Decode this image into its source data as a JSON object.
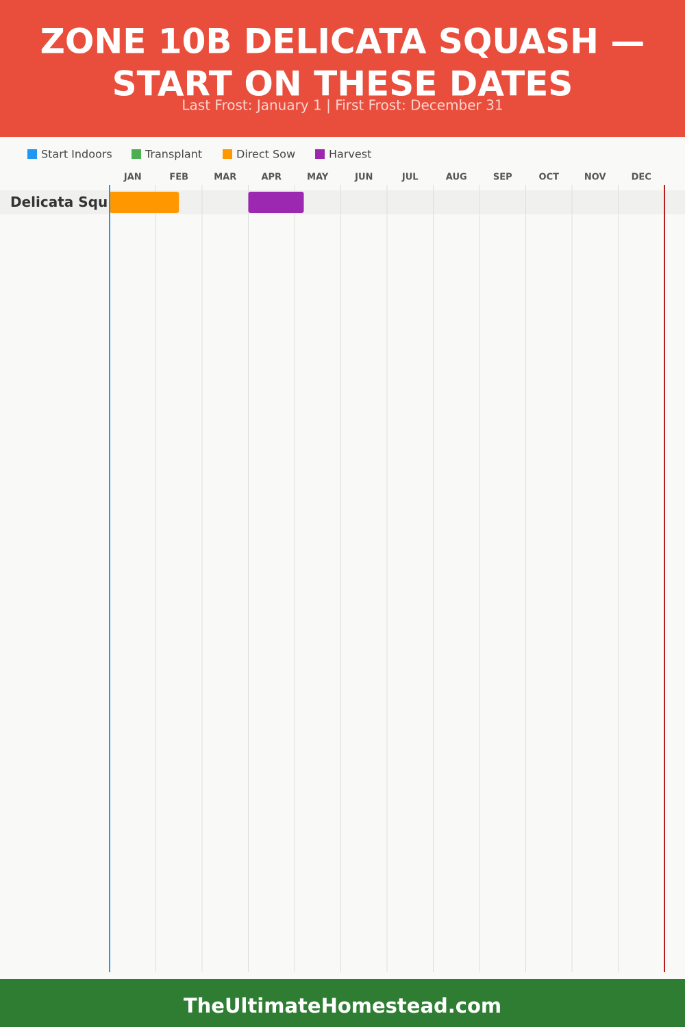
{
  "chart_data": {
    "type": "gantt",
    "title": [
      "ZONE 10B DELICATA SQUASH —",
      "START ON THESE DATES"
    ],
    "subtitle": "Last Frost: January 1 | First Frost: December 31",
    "legend": [
      {
        "name": "Start Indoors",
        "color": "#2196f3"
      },
      {
        "name": "Transplant",
        "color": "#4caf50"
      },
      {
        "name": "Direct Sow",
        "color": "#ff9800"
      },
      {
        "name": "Harvest",
        "color": "#9c27b0"
      }
    ],
    "categories": [
      "JAN",
      "FEB",
      "MAR",
      "APR",
      "MAY",
      "JUN",
      "JUL",
      "AUG",
      "SEP",
      "OCT",
      "NOV",
      "DEC"
    ],
    "xlim": [
      0,
      12
    ],
    "frost_lines": [
      {
        "value": 0,
        "color": "#2196f3"
      },
      {
        "value": 12,
        "color": "#b71c1c"
      }
    ],
    "rows": [
      {
        "label": "Delicata Squ",
        "bars": [
          {
            "legend": 2,
            "start": 0,
            "end": 1.5
          },
          {
            "legend": 3,
            "start": 3,
            "end": 4.2
          }
        ]
      }
    ],
    "footer": "TheUltimateHomestead.com"
  }
}
